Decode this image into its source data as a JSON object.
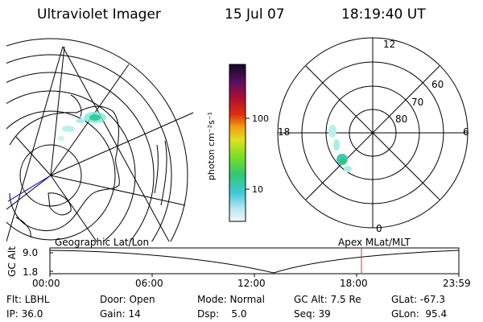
{
  "header": {
    "title": "Ultraviolet Imager",
    "date": "15 Jul 07",
    "time": "18:19:40 UT"
  },
  "colorbar": {
    "unit_label": "photon cm⁻²s⁻¹",
    "ticks": [
      "100",
      "10"
    ],
    "scale": "log"
  },
  "polar_plot": {
    "hour_labels": [
      "12",
      "18",
      "6",
      "0"
    ],
    "lat_labels": [
      "60",
      "70",
      "80"
    ]
  },
  "timeline": {
    "left_title": "Geographic Lat/Lon",
    "right_title": "Apex  MLat/MLT",
    "ylabel": "GC Alt",
    "yticks": [
      "9.0",
      "1.8"
    ],
    "xticks": [
      "00:00",
      "06:00",
      "12:00",
      "18:00",
      "23:59"
    ],
    "cursor_time": "18:19",
    "cursor_color": "#e03030"
  },
  "info": {
    "row1": {
      "flt": "Flt: LBHL",
      "door": "Door: Open",
      "mode": "Mode: Normal",
      "gc_alt": "GC Alt: 7.5 Re",
      "glat": "GLat: -67.3"
    },
    "row2": {
      "ip": "IP: 36.0",
      "gain": "Gain: 14",
      "dsp": "Dsp:    5.0",
      "seq": "Seq: 39",
      "glon": "GLon:  95.4"
    }
  }
}
